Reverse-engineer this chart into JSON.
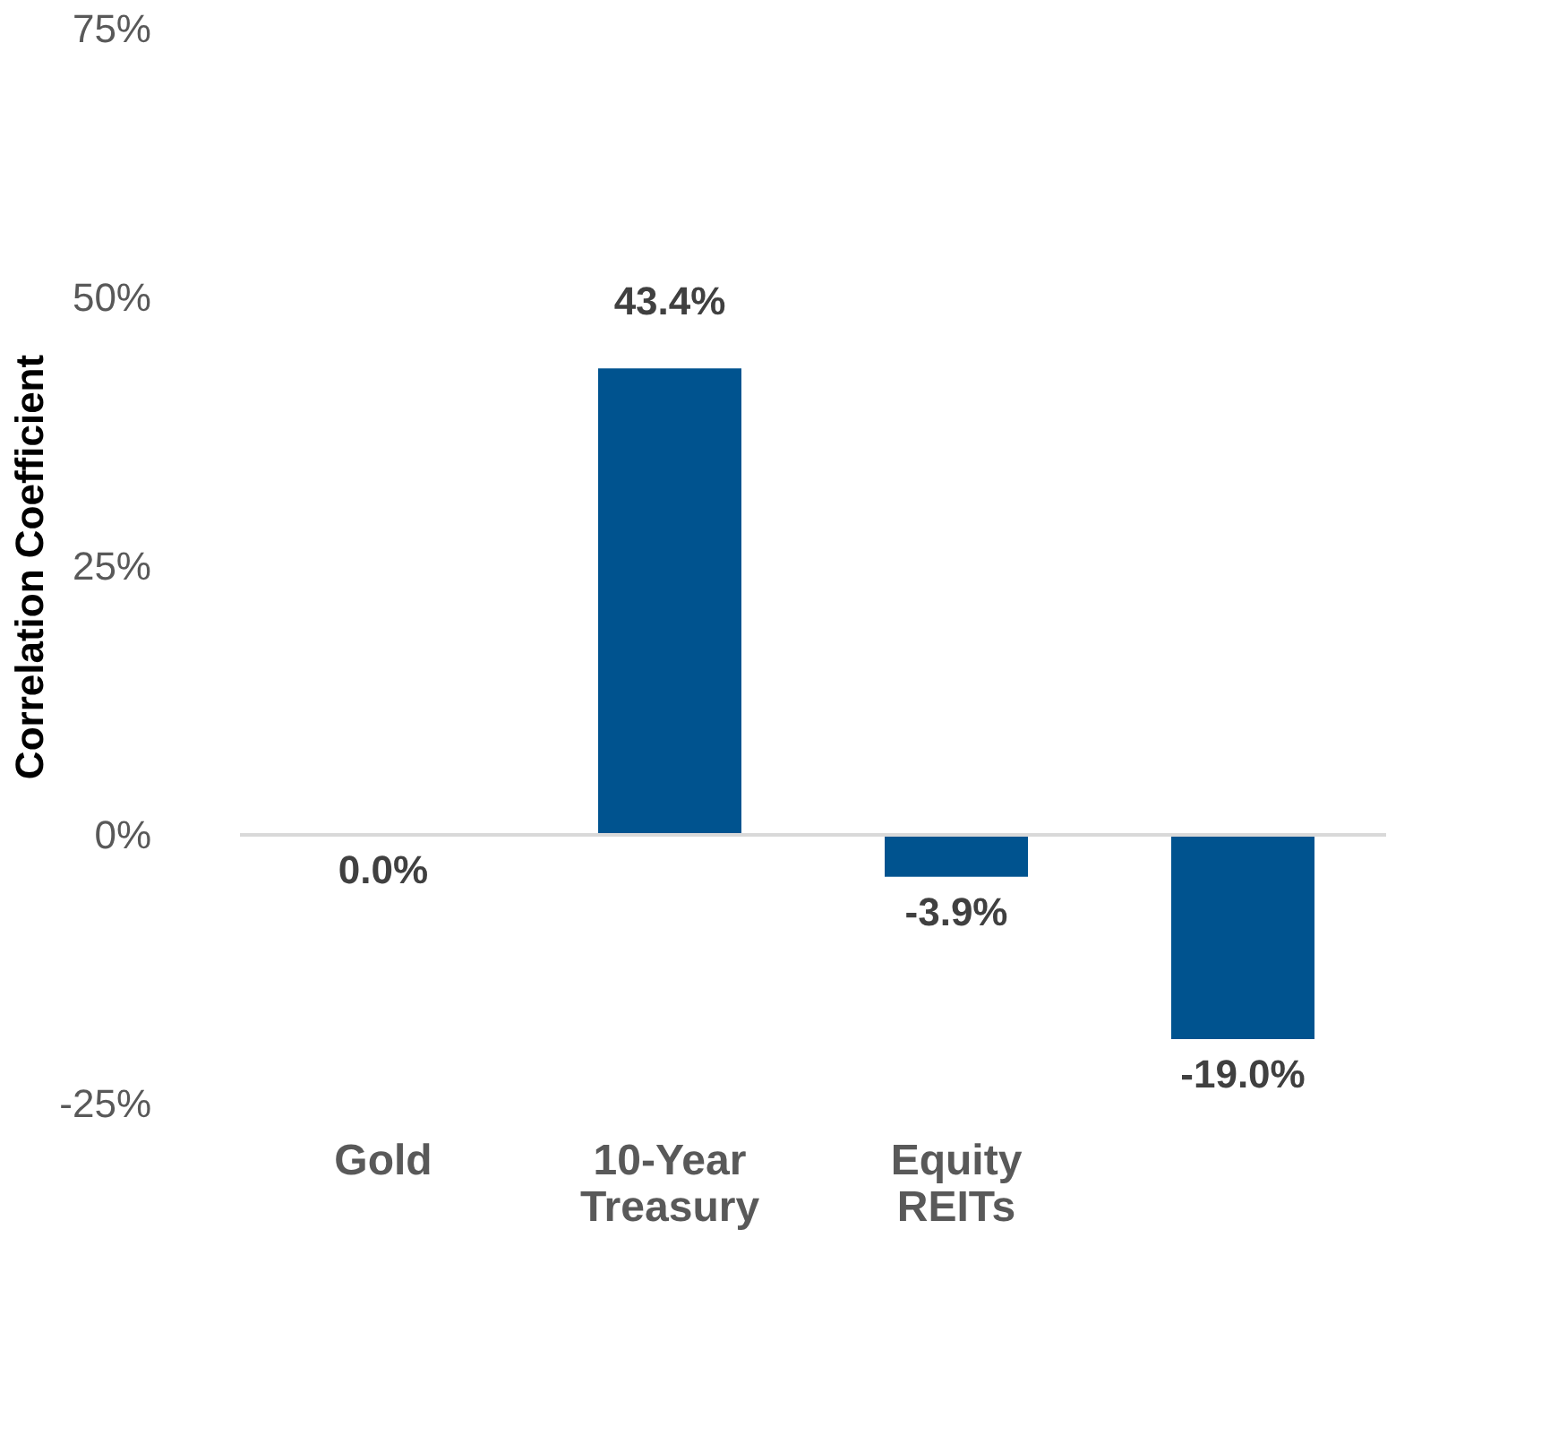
{
  "chart_data": {
    "type": "bar",
    "ylabel": "Correlation Coefficient",
    "categories": [
      "Gold",
      "10-Year Treasury",
      "Equity REITs",
      null
    ],
    "values": [
      0.0,
      43.4,
      -3.9,
      -19.0
    ],
    "value_labels": [
      "0.0%",
      "43.4%",
      "-3.9%",
      "-19.0%"
    ],
    "color": "#00538f",
    "ylim": [
      -25,
      75
    ],
    "yticks": [
      {
        "value": -25,
        "label": "-25%"
      },
      {
        "value": 0,
        "label": "0%"
      },
      {
        "value": 25,
        "label": "25%"
      },
      {
        "value": 50,
        "label": "50%"
      },
      {
        "value": 75,
        "label": "75%"
      }
    ],
    "ref_lines": [
      {
        "axis": "y",
        "value": 0,
        "color": "#d9d9d9"
      }
    ],
    "grid": false
  }
}
